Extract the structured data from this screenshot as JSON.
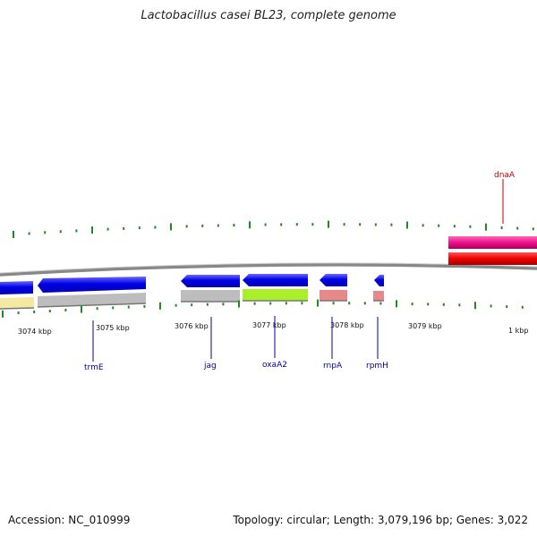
{
  "title": "Lactobacillus casei BL23, complete genome",
  "accession": "Accession: NC_010999",
  "summary": "Topology: circular; Length: 3,079,196 bp; Genes: 3,022",
  "kbp_labels": [
    "3074 kbp",
    "3075 kbp",
    "3076 kbp",
    "3077 kbp",
    "3078 kbp",
    "3079 kbp",
    "1 kbp"
  ],
  "genes": [
    {
      "name": "dnaA",
      "label_color": "#cc0000"
    },
    {
      "name": "trmE",
      "label_color": "#000099"
    },
    {
      "name": "jag",
      "label_color": "#000099"
    },
    {
      "name": "oxaA2",
      "label_color": "#000099"
    },
    {
      "name": "rnpA",
      "label_color": "#000099"
    },
    {
      "name": "rpmH",
      "label_color": "#000099"
    }
  ],
  "colors": {
    "backbone": "#888888",
    "reverse_gene": "#0000e6",
    "forward_pink": "#ee1188",
    "forward_red": "#ee0000",
    "tick": "#228822",
    "cog_yellow": "#f3e9a0",
    "cog_grey": "#bdbdbd",
    "cog_lime": "#aaf02a",
    "cog_salmon": "#e88888"
  }
}
